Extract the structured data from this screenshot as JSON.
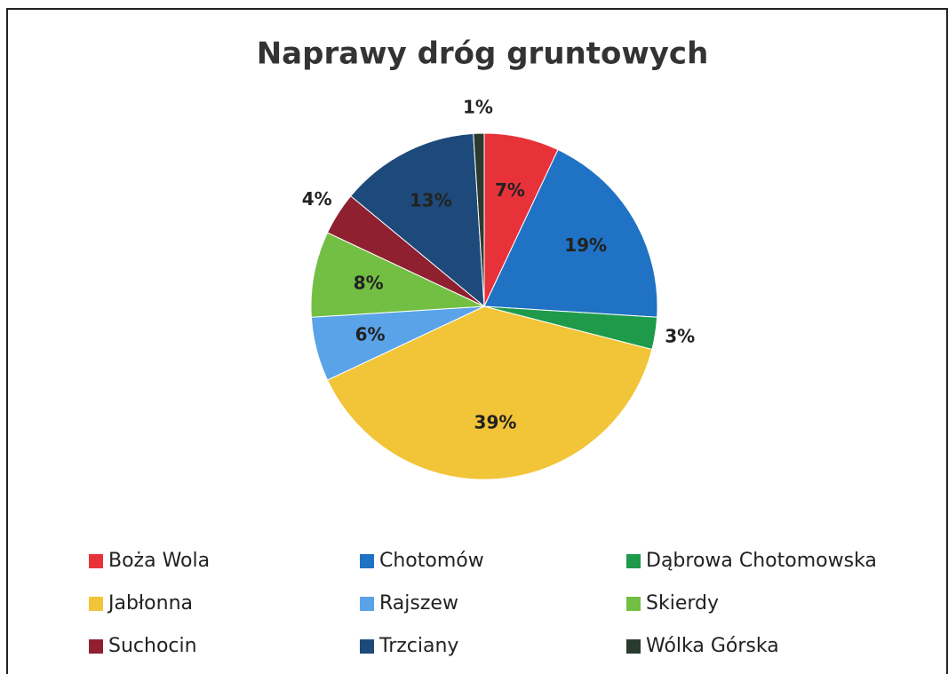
{
  "chart_data": {
    "type": "pie",
    "title": "Naprawy dróg gruntowych",
    "categories": [
      "Boża Wola",
      "Chotomów",
      "Dąbrowa Chotomowska",
      "Jabłonna",
      "Rajszew",
      "Skierdy",
      "Suchocin",
      "Trzciany",
      "Wólka Górska"
    ],
    "values": [
      7,
      19,
      3,
      39,
      6,
      8,
      4,
      13,
      1
    ],
    "value_labels": [
      "7%",
      "19%",
      "3%",
      "39%",
      "6%",
      "8%",
      "4%",
      "13%",
      "1%"
    ],
    "colors": [
      "#e8323a",
      "#1f72c4",
      "#1e9a4a",
      "#f2c437",
      "#5aa3e8",
      "#72bf44",
      "#8e2030",
      "#1d4a7a",
      "#2b3a2e"
    ],
    "legend": "bottom"
  }
}
